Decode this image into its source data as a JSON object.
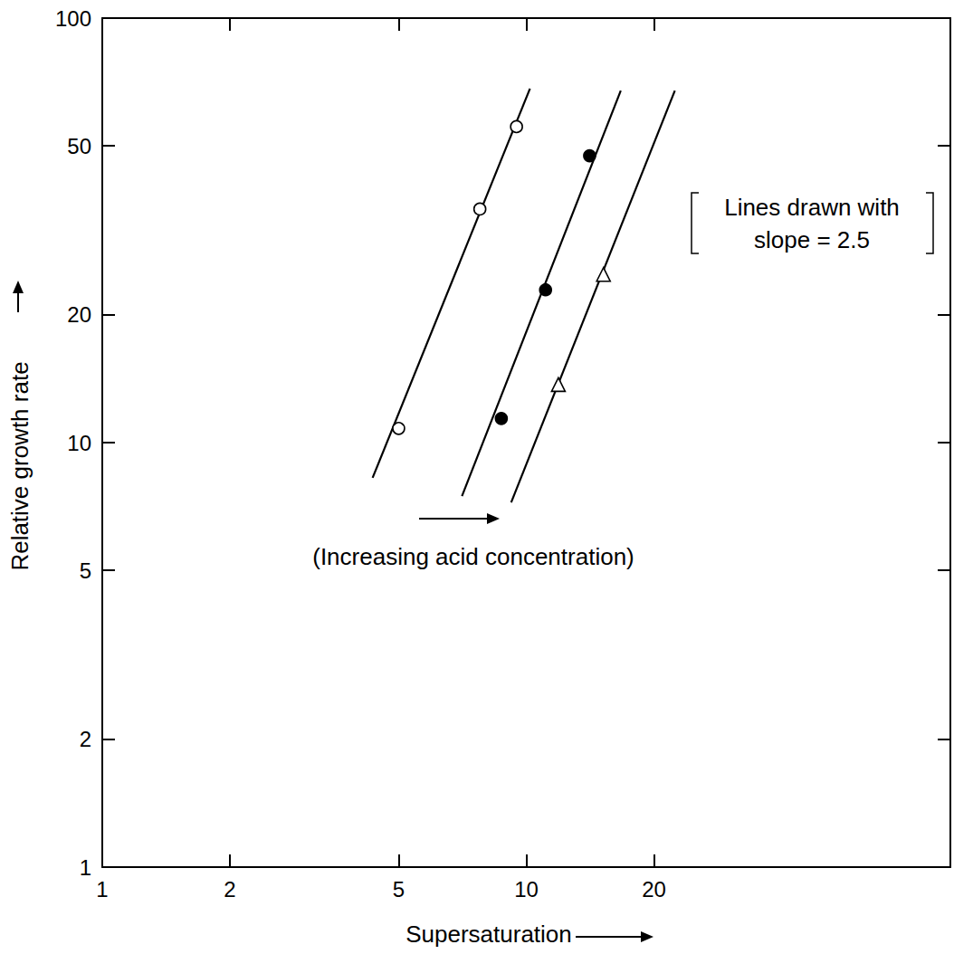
{
  "chart_data": {
    "type": "scatter",
    "xlabel": "Supersaturation",
    "ylabel": "Relative growth rate",
    "log": true,
    "grid": false,
    "xlim": [
      1,
      100
    ],
    "xticks": [
      1,
      2,
      5,
      10,
      20
    ],
    "ylim": [
      1,
      100
    ],
    "yticks": [
      1,
      2,
      5,
      10,
      20,
      50,
      100
    ],
    "annotations": [
      "Lines drawn with\nslope = 2.5",
      "(Increasing acid concentration)"
    ],
    "series": [
      {
        "type": "line",
        "color": "#000000",
        "line_style": "solid",
        "x": [
          4.34,
          10.2
        ],
        "values": [
          8.26,
          68.2
        ]
      },
      {
        "type": "line",
        "color": "#000000",
        "line_style": "solid",
        "x": [
          7.05,
          16.7
        ],
        "values": [
          7.48,
          67.5
        ]
      },
      {
        "type": "line",
        "color": "#000000",
        "line_style": "solid",
        "x": [
          9.21,
          22.4
        ],
        "values": [
          7.23,
          67.5
        ]
      },
      {
        "type": "scatter",
        "color": "#000000",
        "marker": "circle-open",
        "x": [
          5.0,
          7.77,
          9.48
        ],
        "values": [
          10.8,
          35.5,
          55.5
        ]
      },
      {
        "type": "scatter",
        "color": "#000000",
        "marker": "circle",
        "x": [
          8.73,
          11.1,
          14.1
        ],
        "values": [
          11.4,
          22.9,
          47.4
        ]
      },
      {
        "type": "scatter",
        "color": "#000000",
        "marker": "triangle-open",
        "x": [
          11.9,
          15.2
        ],
        "values": [
          13.7,
          24.9
        ]
      }
    ]
  }
}
